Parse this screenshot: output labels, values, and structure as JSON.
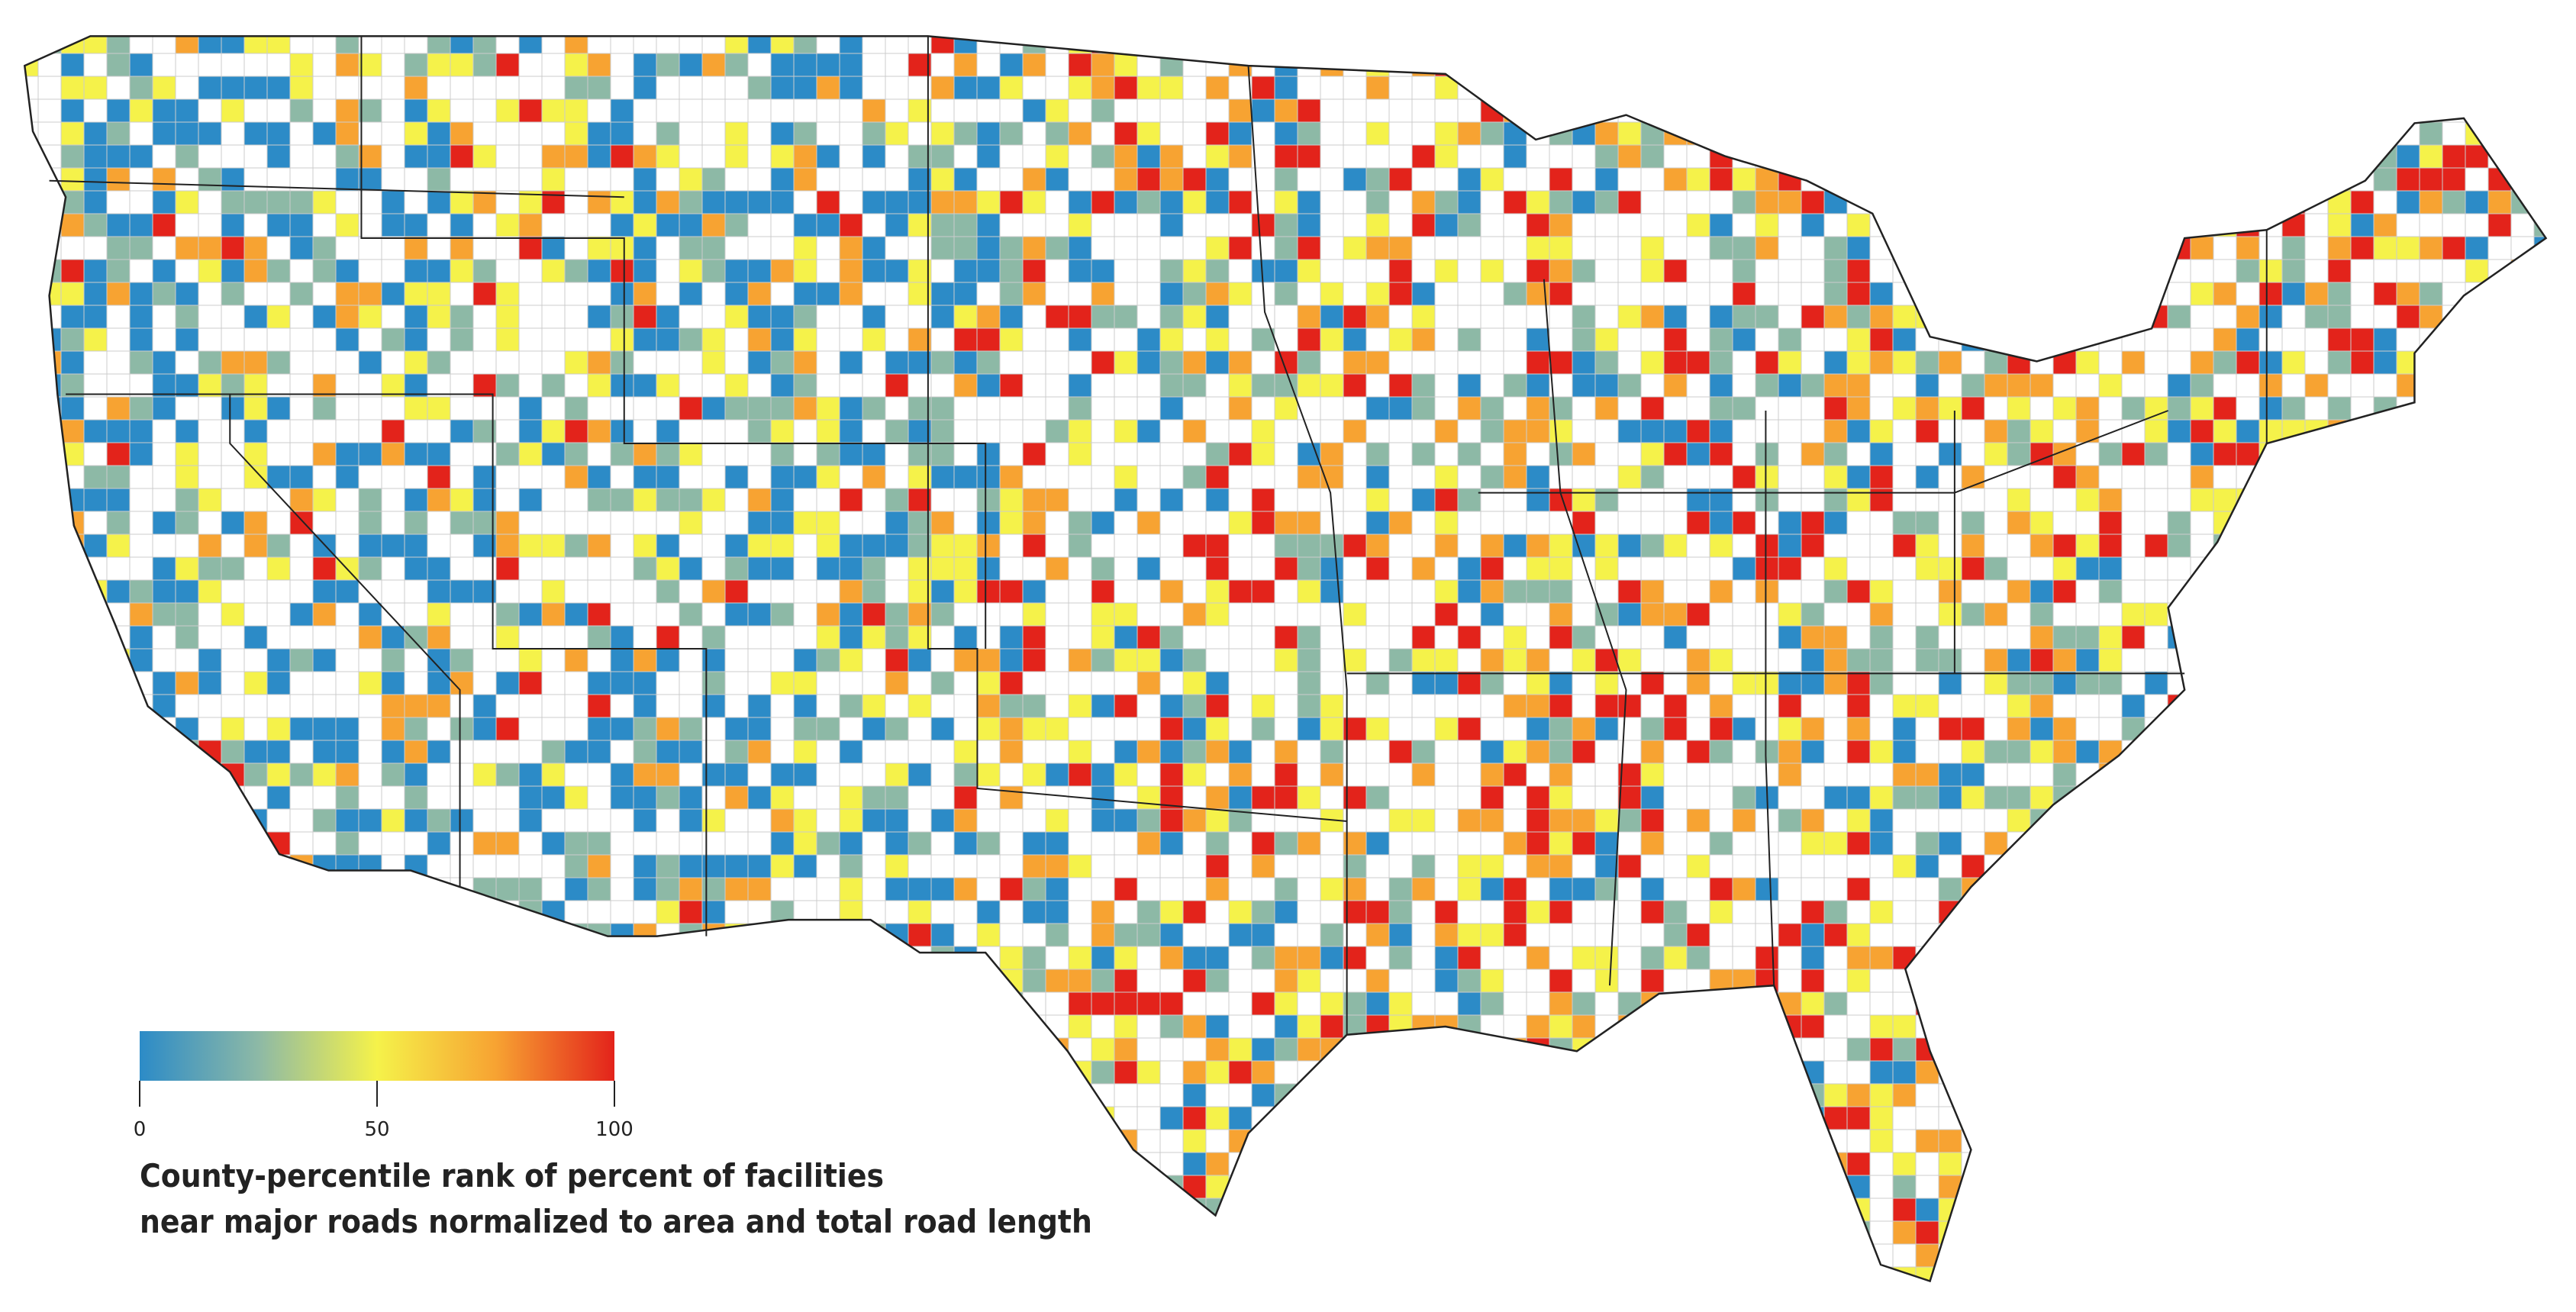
{
  "legend": {
    "colors": [
      "#2c8bc7",
      "#8db9a6",
      "#f5f24a",
      "#f7a332",
      "#e3231b"
    ],
    "range": [
      0,
      100
    ],
    "ticks": [
      0,
      50,
      100
    ],
    "caption": [
      "County-percentile rank of percent of facilities",
      "near major roads normalized to area and total road length"
    ]
  }
}
